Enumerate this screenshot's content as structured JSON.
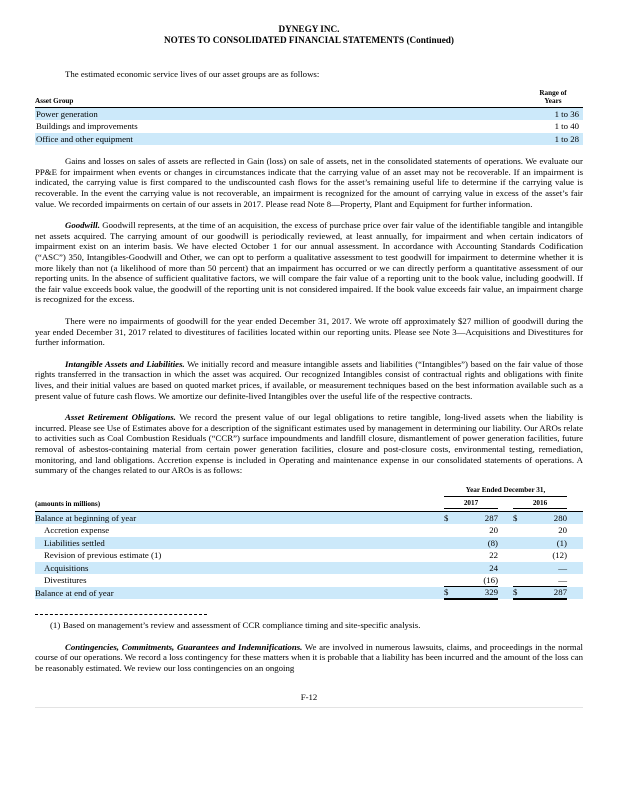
{
  "colors": {
    "row_highlight": "#cce9fa",
    "text": "#000000",
    "bottom_rule": "#e3e3e3"
  },
  "header": {
    "title": "DYNEGY INC.",
    "subtitle": "NOTES TO CONSOLIDATED FINANCIAL STATEMENTS (Continued)"
  },
  "intro": "The estimated economic service lives of our asset groups are as follows:",
  "asset_table": {
    "col1_header": "Asset Group",
    "col2_header_line1": "Range of",
    "col2_header_line2": "Years",
    "rows": [
      {
        "label": "Power generation",
        "value": "1 to 36"
      },
      {
        "label": "Buildings and improvements",
        "value": "1 to 40"
      },
      {
        "label": "Office and other equipment",
        "value": "1 to 28"
      }
    ]
  },
  "paragraphs": {
    "gains": "Gains and losses on sales of assets are reflected in Gain (loss) on sale of assets, net in the consolidated statements of operations.  We evaluate our PP&E for impairment when events or changes in circumstances indicate that the carrying value of an asset may not be recoverable.  If an impairment is indicated, the carrying value is first compared to the undiscounted cash flows for the asset’s remaining useful life to determine if the carrying value is recoverable.  In the event the carrying value is not recoverable, an impairment is recognized for the amount of carrying value in excess of the asset’s fair value.  We recorded impairments on certain of our assets in 2017.  Please read Note 8—Property, Plant and Equipment for further information.",
    "goodwill_lead": "Goodwill.",
    "goodwill": "  Goodwill represents, at the time of an acquisition, the excess of purchase price over fair value of the identifiable tangible and intangible net assets acquired. The carrying amount of our goodwill is periodically reviewed, at least annually, for impairment and when certain indicators of impairment exist on an interim basis.  We have elected October 1 for our annual assessment.  In accordance with Accounting Standards Codification (“ASC”) 350, Intangibles-Goodwill and Other, we can opt to perform a qualitative assessment to test goodwill for impairment to determine whether it is more likely than not (a likelihood of more than 50 percent) that an impairment has occurred or we can directly perform a quantitative assessment of our reporting units. In the absence of sufficient qualitative factors, we will compare the fair value of a reporting unit to the book value, including goodwill. If the fair value exceeds book value, the goodwill of the reporting unit is not considered impaired.  If the book value exceeds fair value, an impairment charge is recognized for the excess.",
    "no_impairments": "There were no impairments of goodwill for the year ended December 31, 2017. We wrote off approximately $27 million of goodwill during the year ended December 31, 2017 related to divestitures of facilities located within our reporting units. Please see Note 3—Acquisitions and Divestitures for further information.",
    "intangible_lead": "Intangible Assets and Liabilities.",
    "intangible": "  We initially record and measure intangible assets and liabilities (“Intangibles”) based on the fair value of those rights transferred in the transaction in which the asset was acquired.  Our recognized Intangibles consist of contractual rights and obligations with finite lives, and their initial values are based on quoted market prices, if available, or measurement techniques based on the best information available such as a present value of future cash flows. We amortize our definite-lived Intangibles over the useful life of the respective contracts.",
    "aro_lead": "Asset Retirement Obligations.",
    "aro": "  We record the present value of our legal obligations to retire tangible, long-lived assets when the liability is incurred. Please see Use of Estimates above for a description of the significant estimates used by management in determining our liability.  Our AROs relate to activities such as Coal Combustion Residuals (“CCR”) surface impoundments and landfill closure, dismantlement of power generation facilities, future removal of asbestos-containing material from certain power generation facilities, closure and post-closure costs, environmental testing, remediation, monitoring, and land obligations.  Accretion expense is included in Operating and maintenance expense in our consolidated statements of operations.  A summary of the changes related to our AROs is as follows:",
    "contingencies_lead": "Contingencies, Commitments, Guarantees and Indemnifications.",
    "contingencies": "  We are involved in numerous lawsuits, claims, and proceedings in the normal course of our operations. We record a loss contingency for these matters when it is probable that a liability has been incurred and the amount of the loss can be reasonably estimated. We review our loss contingencies on an ongoing"
  },
  "aro_table": {
    "period_header": "Year Ended December 31,",
    "col_2017": "2017",
    "col_2016": "2016",
    "units_label": "(amounts in millions)",
    "rows": [
      {
        "label": "Balance at beginning of year",
        "d1": "$",
        "v1": "287",
        "d2": "$",
        "v2": "280"
      },
      {
        "label": "Accretion expense",
        "d1": "",
        "v1": "20",
        "d2": "",
        "v2": "20"
      },
      {
        "label": "Liabilities settled",
        "d1": "",
        "v1": "(8)",
        "d2": "",
        "v2": "(1)"
      },
      {
        "label": "Revision of previous estimate (1)",
        "d1": "",
        "v1": "22",
        "d2": "",
        "v2": "(12)"
      },
      {
        "label": "Acquisitions",
        "d1": "",
        "v1": "24",
        "d2": "",
        "v2": "—"
      },
      {
        "label": "Divestitures",
        "d1": "",
        "v1": "(16)",
        "d2": "",
        "v2": "—"
      },
      {
        "label": "Balance at end of year",
        "d1": "$",
        "v1": "329",
        "d2": "$",
        "v2": "287"
      }
    ],
    "footnote_marker": "(1)",
    "footnote_text": "Based on management’s review and assessment of CCR compliance timing and site-specific analysis."
  },
  "footer": {
    "page_number": "F-12"
  }
}
